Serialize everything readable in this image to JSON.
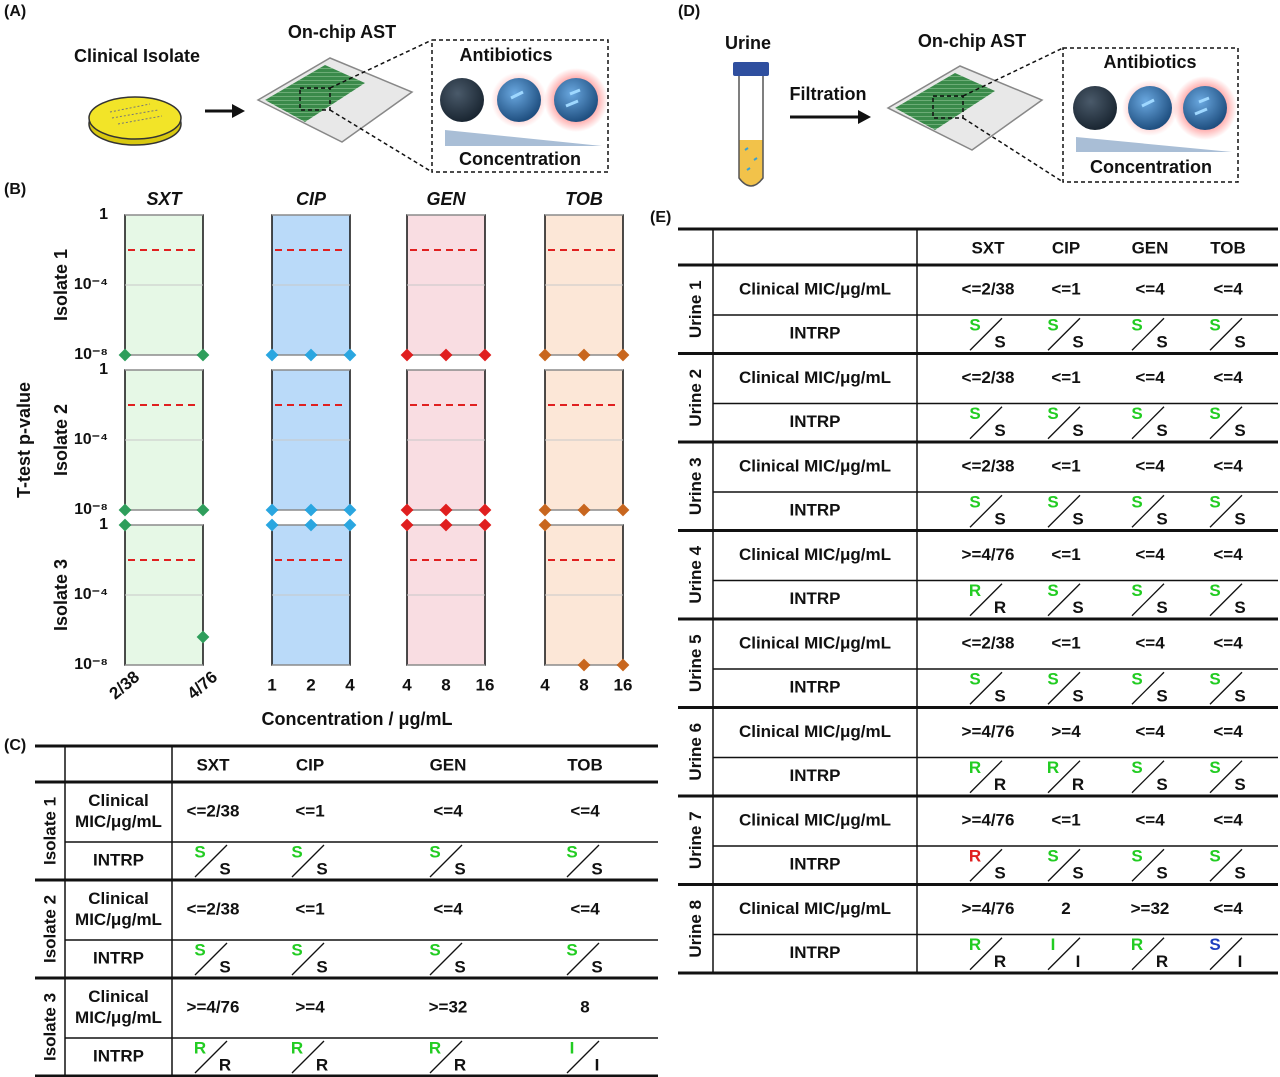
{
  "panel_a": {
    "label": "(A)",
    "source": "Clinical Isolate",
    "device": "On-chip AST",
    "inset_title": "Antibiotics",
    "inset_axis": "Concentration"
  },
  "panel_d": {
    "label": "(D)",
    "source": "Urine",
    "step": "Filtration",
    "device": "On-chip AST",
    "inset_title": "Antibiotics",
    "inset_axis": "Concentration"
  },
  "chart_data": {
    "type": "scatter",
    "label": "(B)",
    "ylabel": "T-test p-value",
    "xlabel": "Concentration / μg/mL",
    "log_y": true,
    "ylim": [
      1e-08,
      1
    ],
    "yticks": [
      1,
      {
        "value": 0.0001,
        "label": "10⁻⁴"
      },
      {
        "value": 1e-08,
        "label": "10⁻⁸"
      }
    ],
    "grid": true,
    "threshold": 0.01,
    "threshold_color": "#e02020",
    "rows": [
      "Isolate 1",
      "Isolate 2",
      "Isolate 3"
    ],
    "panels": [
      {
        "name": "SXT",
        "color": "#2e9e5b",
        "fill": "#e6f8e6",
        "categories": [
          "2/38",
          "4/76"
        ],
        "values": [
          [
            1e-08,
            1e-08
          ],
          [
            1e-08,
            1e-08
          ],
          [
            1,
            4e-07
          ]
        ]
      },
      {
        "name": "CIP",
        "color": "#2aa6e0",
        "fill": "#badaf9",
        "categories": [
          "1",
          "2",
          "4"
        ],
        "values": [
          [
            1e-08,
            1e-08,
            1e-08
          ],
          [
            1e-08,
            1e-08,
            1e-08
          ],
          [
            1,
            1,
            1
          ]
        ]
      },
      {
        "name": "GEN",
        "color": "#e01e1e",
        "fill": "#f9dde2",
        "categories": [
          "4",
          "8",
          "16"
        ],
        "values": [
          [
            1e-08,
            1e-08,
            1e-08
          ],
          [
            1e-08,
            1e-08,
            1e-08
          ],
          [
            1,
            1,
            1
          ]
        ]
      },
      {
        "name": "TOB",
        "color": "#c8661e",
        "fill": "#fce7d7",
        "categories": [
          "4",
          "8",
          "16"
        ],
        "values": [
          [
            1e-08,
            1e-08,
            1e-08
          ],
          [
            1e-08,
            1e-08,
            1e-08
          ],
          [
            1,
            1e-08,
            1e-08
          ]
        ]
      }
    ]
  },
  "table_c": {
    "label": "(C)",
    "columns": [
      "SXT",
      "CIP",
      "GEN",
      "TOB"
    ],
    "mic_label": [
      "Clinical",
      "MIC/μg/mL"
    ],
    "interp_label": "INTRP",
    "groups": [
      {
        "name": "Isolate 1",
        "mic": [
          "<=2/38",
          "<=1",
          "<=4",
          "<=4"
        ],
        "interp": [
          {
            "chip": "S",
            "clinical": "S",
            "color": "#22cc22"
          },
          {
            "chip": "S",
            "clinical": "S",
            "color": "#22cc22"
          },
          {
            "chip": "S",
            "clinical": "S",
            "color": "#22cc22"
          },
          {
            "chip": "S",
            "clinical": "S",
            "color": "#22cc22"
          }
        ]
      },
      {
        "name": "Isolate 2",
        "mic": [
          "<=2/38",
          "<=1",
          "<=4",
          "<=4"
        ],
        "interp": [
          {
            "chip": "S",
            "clinical": "S",
            "color": "#22cc22"
          },
          {
            "chip": "S",
            "clinical": "S",
            "color": "#22cc22"
          },
          {
            "chip": "S",
            "clinical": "S",
            "color": "#22cc22"
          },
          {
            "chip": "S",
            "clinical": "S",
            "color": "#22cc22"
          }
        ]
      },
      {
        "name": "Isolate 3",
        "mic": [
          ">=4/76",
          ">=4",
          ">=32",
          "8"
        ],
        "interp": [
          {
            "chip": "R",
            "clinical": "R",
            "color": "#22cc22"
          },
          {
            "chip": "R",
            "clinical": "R",
            "color": "#22cc22"
          },
          {
            "chip": "R",
            "clinical": "R",
            "color": "#22cc22"
          },
          {
            "chip": "I",
            "clinical": "I",
            "color": "#22cc22"
          }
        ]
      }
    ]
  },
  "table_e": {
    "label": "(E)",
    "columns": [
      "SXT",
      "CIP",
      "GEN",
      "TOB"
    ],
    "mic_label": [
      "Clinical MIC/μg/mL"
    ],
    "interp_label": "INTRP",
    "groups": [
      {
        "name": "Urine 1",
        "mic": [
          "<=2/38",
          "<=1",
          "<=4",
          "<=4"
        ],
        "interp": [
          {
            "chip": "S",
            "clinical": "S",
            "color": "#22cc22"
          },
          {
            "chip": "S",
            "clinical": "S",
            "color": "#22cc22"
          },
          {
            "chip": "S",
            "clinical": "S",
            "color": "#22cc22"
          },
          {
            "chip": "S",
            "clinical": "S",
            "color": "#22cc22"
          }
        ]
      },
      {
        "name": "Urine 2",
        "mic": [
          "<=2/38",
          "<=1",
          "<=4",
          "<=4"
        ],
        "interp": [
          {
            "chip": "S",
            "clinical": "S",
            "color": "#22cc22"
          },
          {
            "chip": "S",
            "clinical": "S",
            "color": "#22cc22"
          },
          {
            "chip": "S",
            "clinical": "S",
            "color": "#22cc22"
          },
          {
            "chip": "S",
            "clinical": "S",
            "color": "#22cc22"
          }
        ]
      },
      {
        "name": "Urine 3",
        "mic": [
          "<=2/38",
          "<=1",
          "<=4",
          "<=4"
        ],
        "interp": [
          {
            "chip": "S",
            "clinical": "S",
            "color": "#22cc22"
          },
          {
            "chip": "S",
            "clinical": "S",
            "color": "#22cc22"
          },
          {
            "chip": "S",
            "clinical": "S",
            "color": "#22cc22"
          },
          {
            "chip": "S",
            "clinical": "S",
            "color": "#22cc22"
          }
        ]
      },
      {
        "name": "Urine 4",
        "mic": [
          ">=4/76",
          "<=1",
          "<=4",
          "<=4"
        ],
        "interp": [
          {
            "chip": "R",
            "clinical": "R",
            "color": "#22cc22"
          },
          {
            "chip": "S",
            "clinical": "S",
            "color": "#22cc22"
          },
          {
            "chip": "S",
            "clinical": "S",
            "color": "#22cc22"
          },
          {
            "chip": "S",
            "clinical": "S",
            "color": "#22cc22"
          }
        ]
      },
      {
        "name": "Urine 5",
        "mic": [
          "<=2/38",
          "<=1",
          "<=4",
          "<=4"
        ],
        "interp": [
          {
            "chip": "S",
            "clinical": "S",
            "color": "#22cc22"
          },
          {
            "chip": "S",
            "clinical": "S",
            "color": "#22cc22"
          },
          {
            "chip": "S",
            "clinical": "S",
            "color": "#22cc22"
          },
          {
            "chip": "S",
            "clinical": "S",
            "color": "#22cc22"
          }
        ]
      },
      {
        "name": "Urine 6",
        "mic": [
          ">=4/76",
          ">=4",
          "<=4",
          "<=4"
        ],
        "interp": [
          {
            "chip": "R",
            "clinical": "R",
            "color": "#22cc22"
          },
          {
            "chip": "R",
            "clinical": "R",
            "color": "#22cc22"
          },
          {
            "chip": "S",
            "clinical": "S",
            "color": "#22cc22"
          },
          {
            "chip": "S",
            "clinical": "S",
            "color": "#22cc22"
          }
        ]
      },
      {
        "name": "Urine 7",
        "mic": [
          ">=4/76",
          "<=1",
          "<=4",
          "<=4"
        ],
        "interp": [
          {
            "chip": "R",
            "clinical": "S",
            "color": "#e02020"
          },
          {
            "chip": "S",
            "clinical": "S",
            "color": "#22cc22"
          },
          {
            "chip": "S",
            "clinical": "S",
            "color": "#22cc22"
          },
          {
            "chip": "S",
            "clinical": "S",
            "color": "#22cc22"
          }
        ]
      },
      {
        "name": "Urine 8",
        "mic": [
          ">=4/76",
          "2",
          ">=32",
          "<=4"
        ],
        "interp": [
          {
            "chip": "R",
            "clinical": "R",
            "color": "#22cc22"
          },
          {
            "chip": "I",
            "clinical": "I",
            "color": "#22cc22"
          },
          {
            "chip": "R",
            "clinical": "R",
            "color": "#22cc22"
          },
          {
            "chip": "S",
            "clinical": "I",
            "color": "#1f3fbf"
          }
        ]
      }
    ]
  }
}
